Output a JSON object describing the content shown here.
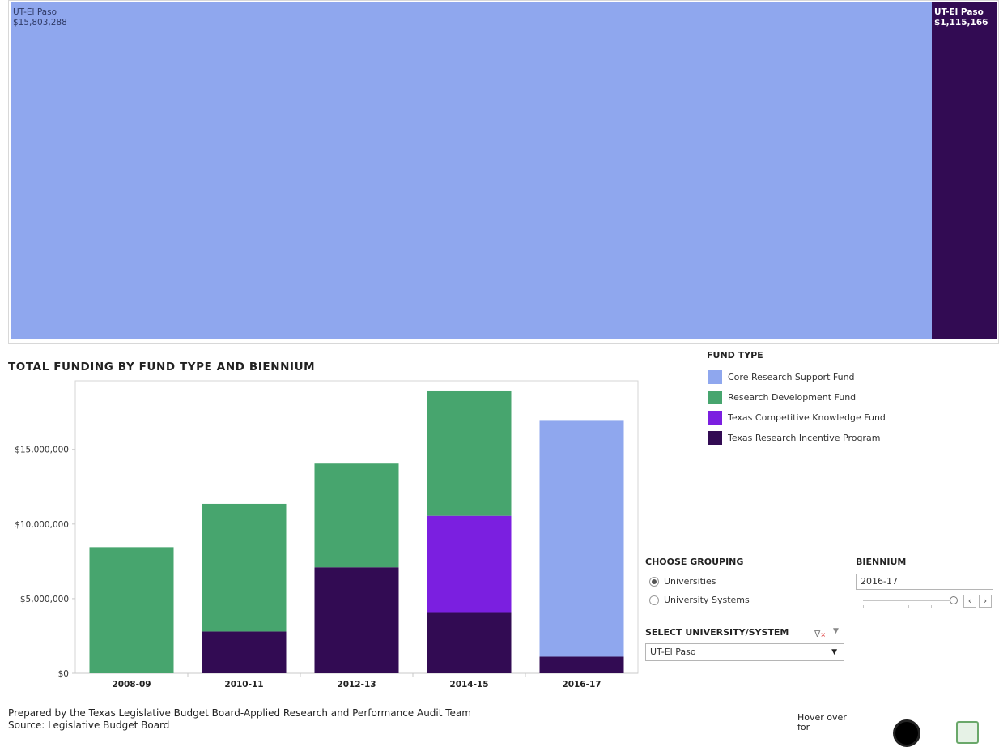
{
  "colors": {
    "core_research_support": "#8fa7ee",
    "research_development": "#47a56e",
    "texas_competitive_knowledge": "#7b1fe0",
    "texas_research_incentive": "#320b53"
  },
  "treemap": {
    "blocks": [
      {
        "label_name": "UT-El Paso",
        "label_value": "$15,803,288",
        "fund": "Core Research Support Fund",
        "value": 15803288,
        "color": "#8fa7ee",
        "text_color": "#2f3a66",
        "bold": false
      },
      {
        "label_name": "UT-El Paso",
        "label_value": "$1,115,166",
        "fund": "Texas Research Incentive Program",
        "value": 1115166,
        "color": "#320b53",
        "text_color": "#ffffff",
        "bold": true
      }
    ]
  },
  "chart": {
    "title": "TOTAL FUNDING BY FUND TYPE AND BIENNIUM"
  },
  "chart_data": {
    "type": "bar",
    "stacked": true,
    "title": "TOTAL FUNDING BY FUND TYPE AND BIENNIUM",
    "categories": [
      "2008-09",
      "2010-11",
      "2012-13",
      "2014-15",
      "2016-17"
    ],
    "ylim": [
      0,
      19600000
    ],
    "yticks": [
      0,
      5000000,
      10000000,
      15000000
    ],
    "ytick_labels": [
      "$0",
      "$5,000,000",
      "$10,000,000",
      "$15,000,000"
    ],
    "grid": false,
    "series": [
      {
        "name": "Texas Research Incentive Program",
        "color": "#320b53",
        "values": [
          0,
          2800000,
          7100000,
          4100000,
          1115166
        ]
      },
      {
        "name": "Texas Competitive Knowledge Fund",
        "color": "#7b1fe0",
        "values": [
          0,
          0,
          0,
          6450000,
          0
        ]
      },
      {
        "name": "Research Development Fund",
        "color": "#47a56e",
        "values": [
          8450000,
          8550000,
          6950000,
          8400000,
          0
        ]
      },
      {
        "name": "Core Research Support Fund",
        "color": "#8fa7ee",
        "values": [
          0,
          0,
          0,
          0,
          15803288
        ]
      }
    ]
  },
  "legend": {
    "title": "FUND TYPE",
    "items": [
      {
        "label": "Core Research Support Fund",
        "color": "#8fa7ee"
      },
      {
        "label": "Research Development Fund",
        "color": "#47a56e"
      },
      {
        "label": "Texas Competitive Knowledge Fund",
        "color": "#7b1fe0"
      },
      {
        "label": "Texas Research Incentive Program",
        "color": "#320b53"
      }
    ]
  },
  "grouping": {
    "title": "CHOOSE GROUPING",
    "options": [
      {
        "label": "Universities",
        "selected": true
      },
      {
        "label": "University Systems",
        "selected": false
      }
    ]
  },
  "biennium": {
    "title": "BIENNIUM",
    "value": "2016-17",
    "prev_icon": "chevron-left-icon",
    "next_icon": "chevron-right-icon"
  },
  "select_university": {
    "title": "SELECT UNIVERSITY/SYSTEM",
    "value": "UT-El Paso",
    "filter_icon": "clear-filter-icon"
  },
  "footer": {
    "prepared_by": "Prepared by the Texas Legislative Budget Board-Applied Research and Performance Audit Team",
    "source": "Source: Legislative Budget Board",
    "hover_text": "Hover over\nfor"
  }
}
